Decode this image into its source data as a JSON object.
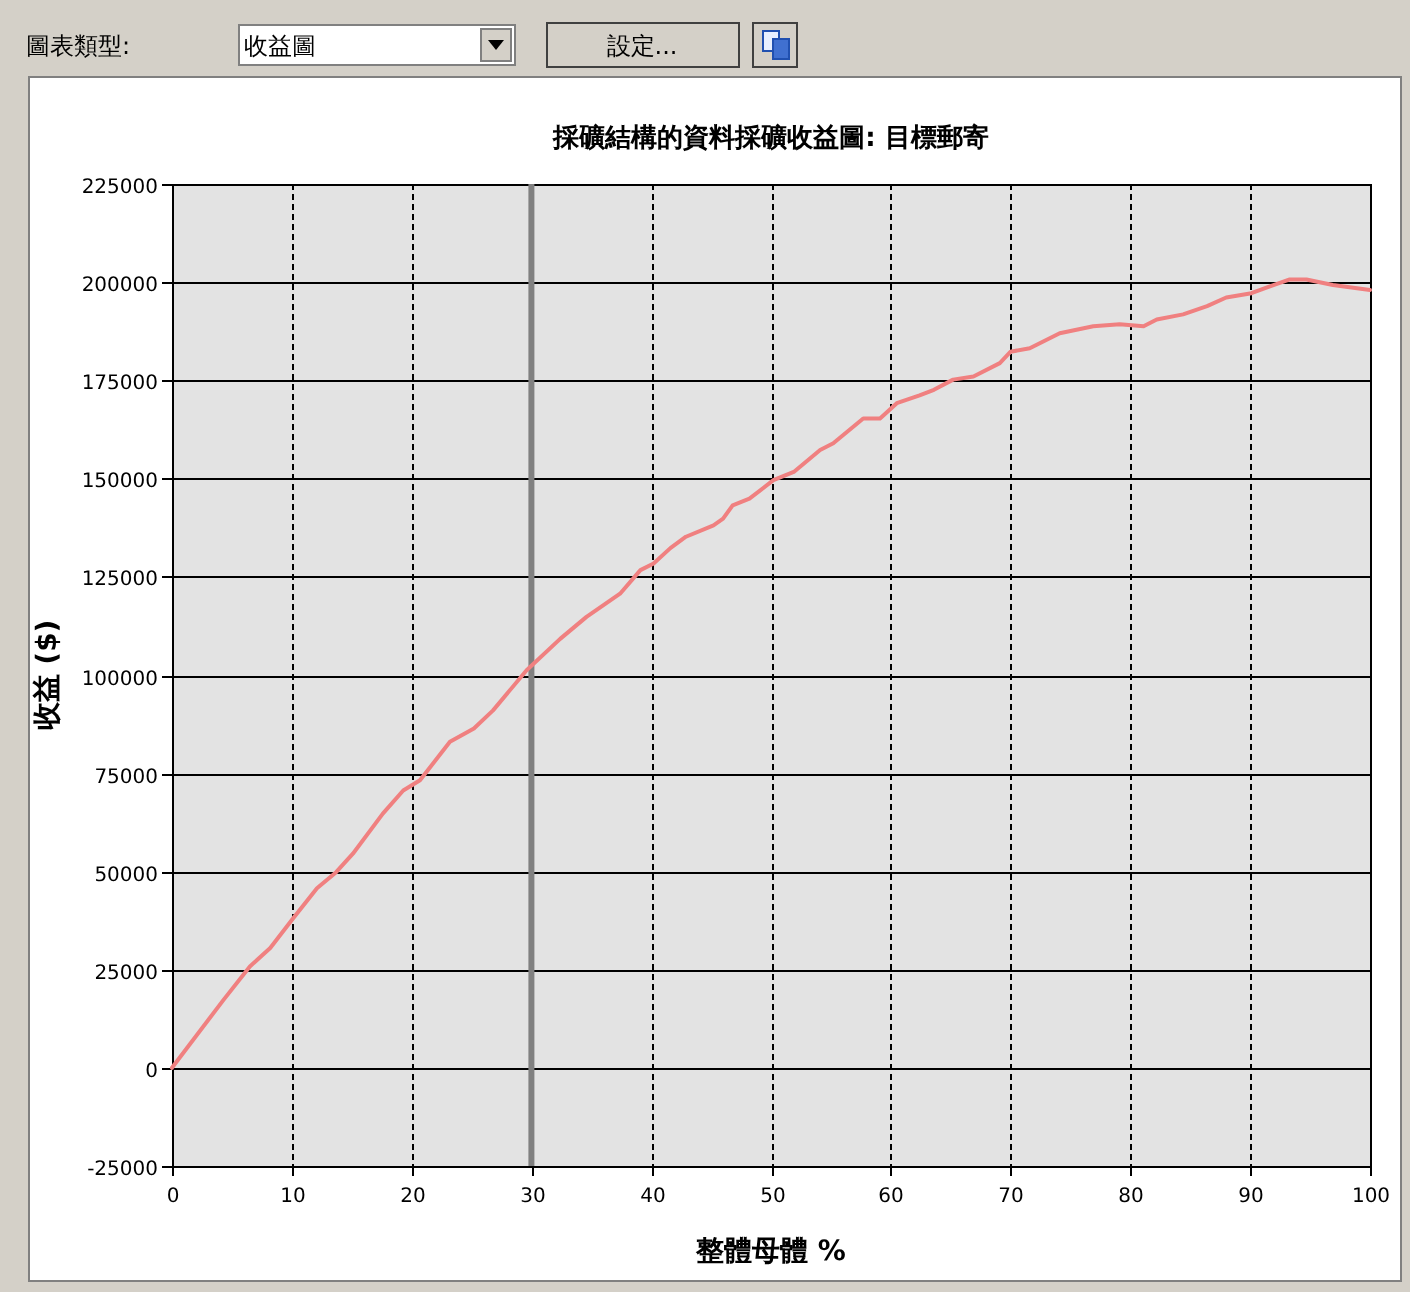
{
  "chart_data": {
    "type": "line",
    "title": "採礦結構的資料採礦收益圖: 目標郵寄",
    "xlabel": "整體母體 %",
    "ylabel": "收益 ($)",
    "annotations": [
      "圖表類型:",
      "收益圖",
      "設定..."
    ],
    "x": [
      0,
      4.3,
      6.5,
      8.2,
      10.1,
      12.1,
      13.7,
      15.1,
      17.6,
      19.3,
      20.7,
      23.2,
      25.2,
      26.8,
      29.6,
      32.4,
      34.6,
      37.4,
      39.1,
      40.2,
      41.6,
      42.9,
      45.2,
      46.0,
      46.8,
      48.2,
      50.2,
      51.9,
      54.1,
      55.2,
      57.7,
      59.1,
      60.5,
      62.4,
      63.6,
      65.2,
      66.9,
      69.1,
      70.0,
      71.6,
      74.1,
      76.9,
      79.1,
      81.1,
      82.2,
      84.4,
      86.4,
      88.0,
      90.1,
      91.7,
      93.3,
      94.7,
      96.9,
      100
    ],
    "series": [
      {
        "color": "#f08080",
        "values": [
          0,
          17300,
          25800,
          30500,
          38000,
          45700,
          49800,
          54500,
          64700,
          70600,
          73200,
          83000,
          86400,
          91000,
          101200,
          109200,
          114800,
          120700,
          126700,
          128400,
          132300,
          135200,
          138100,
          139800,
          143200,
          144900,
          149600,
          151700,
          157300,
          159000,
          165300,
          165300,
          169200,
          171200,
          172600,
          175200,
          176000,
          179400,
          182300,
          183200,
          187000,
          188800,
          189300,
          188800,
          190500,
          191800,
          193900,
          196100,
          197200,
          199000,
          200700,
          200700,
          199300,
          198000
        ]
      }
    ],
    "xlim": [
      0,
      100
    ],
    "xticks": [
      0,
      10,
      20,
      30,
      40,
      50,
      60,
      70,
      80,
      90,
      100
    ],
    "ylim": [
      -25000,
      225000
    ],
    "yticks": [
      -25000,
      0,
      25000,
      50000,
      75000,
      100000,
      125000,
      150000,
      175000,
      200000,
      225000
    ],
    "ref_lines": [
      {
        "axis": "x",
        "value": 30,
        "color": "#808080"
      }
    ],
    "grid": true
  }
}
